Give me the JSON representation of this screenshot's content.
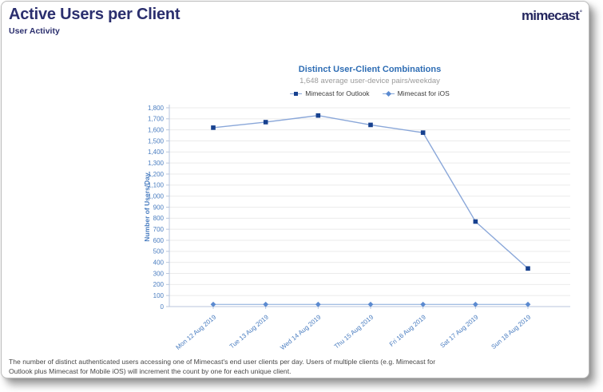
{
  "page": {
    "title": "Active Users per Client",
    "subtitle": "User Activity",
    "brand": "mimecast",
    "brand_mark": "°",
    "footer": "The number of distinct authenticated users accessing one of Mimecast's end user clients per day. Users of multiple clients (e.g. Mimecast for Outlook plus Mimecast for Mobile iOS) will increment the count by one for each unique client."
  },
  "colors": {
    "heading_navy": "#2b2f6e",
    "chart_title_blue": "#2e6db4",
    "axis_label_blue": "#4a7dc0",
    "gridline": "#ebebeb",
    "axis_line": "#b9c6dc",
    "outlook_marker": "#17418f",
    "outlook_line": "#8aa7d9",
    "ios_marker": "#5b8ad0",
    "ios_line": "#85a8da",
    "subtitle_gray": "#9b9b9b",
    "footer_gray": "#474747"
  },
  "chart_data": {
    "type": "line",
    "title": "Distinct User-Client Combinations",
    "subtitle": "1,648 average user-device pairs/weekday",
    "ylabel": "Number of Users/Day",
    "xlabel": "",
    "ylim": [
      0,
      1800
    ],
    "ytick_step": 100,
    "grid": true,
    "legend_position": "top",
    "categories": [
      "Mon 12 Aug 2019",
      "Tue 13 Aug 2019",
      "Wed 14 Aug 2019",
      "Thu 15 Aug 2019",
      "Fri 16 Aug 2019",
      "Sat 17 Aug 2019",
      "Sun 18 Aug 2019"
    ],
    "series": [
      {
        "name": "Mimecast for Outlook",
        "values": [
          1620,
          1670,
          1730,
          1645,
          1575,
          770,
          345
        ],
        "marker": "square",
        "marker_color": "#17418f",
        "line_color": "#8aa7d9"
      },
      {
        "name": "Mimecast for iOS",
        "values": [
          20,
          20,
          20,
          20,
          20,
          20,
          20
        ],
        "marker": "diamond",
        "marker_color": "#5b8ad0",
        "line_color": "#85a8da"
      }
    ]
  }
}
